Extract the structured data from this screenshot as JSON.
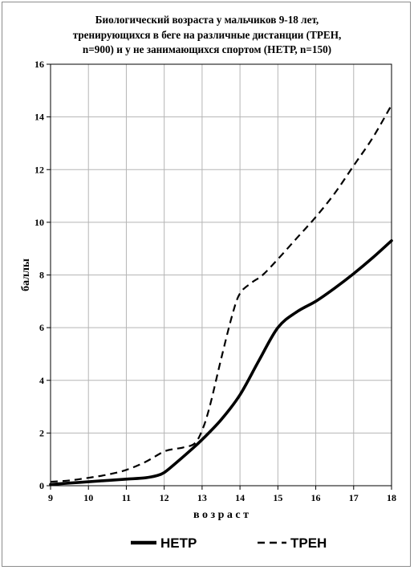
{
  "chart_data": {
    "type": "line",
    "title_lines": [
      "Биологический возраста  у мальчиков 9-18 лет,",
      "тренирующихся в беге на различные дистанции (ТРЕН,",
      "n=900) и у не занимающихся спортом (НЕТР, n=150)"
    ],
    "xlabel": "в о з р а с т",
    "ylabel": "баллы",
    "xlim": [
      9,
      18
    ],
    "ylim": [
      0,
      16
    ],
    "xticks": [
      "9",
      "10",
      "11",
      "12",
      "13",
      "14",
      "15",
      "16",
      "17",
      "18"
    ],
    "yticks": [
      "0",
      "2",
      "4",
      "6",
      "8",
      "10",
      "12",
      "14",
      "16"
    ],
    "grid": true,
    "legend_position": "bottom",
    "series": [
      {
        "name": "НЕТР",
        "style": "solid",
        "color": "#000000",
        "x": [
          9,
          9.5,
          10,
          10.5,
          11,
          11.5,
          11.8,
          12,
          12.3,
          12.7,
          13,
          13.5,
          14,
          14.5,
          15,
          15.5,
          16,
          16.5,
          17,
          17.5,
          18
        ],
        "y": [
          0.05,
          0.1,
          0.15,
          0.2,
          0.25,
          0.3,
          0.38,
          0.5,
          0.85,
          1.35,
          1.75,
          2.5,
          3.45,
          4.75,
          6.0,
          6.6,
          7.0,
          7.5,
          8.05,
          8.65,
          9.3
        ]
      },
      {
        "name": "ТРЕН",
        "style": "dashed",
        "color": "#000000",
        "x": [
          9,
          9.5,
          10,
          10.5,
          11,
          11.5,
          12,
          12.3,
          12.5,
          12.8,
          13,
          13.2,
          13.5,
          13.8,
          14,
          14.3,
          14.6,
          15,
          15.5,
          16,
          16.5,
          17,
          17.5,
          18
        ],
        "y": [
          0.15,
          0.2,
          0.3,
          0.42,
          0.6,
          0.9,
          1.3,
          1.4,
          1.45,
          1.6,
          2.1,
          3.0,
          4.8,
          6.5,
          7.3,
          7.7,
          8.0,
          8.6,
          9.4,
          10.2,
          11.1,
          12.15,
          13.2,
          14.45
        ]
      }
    ]
  }
}
